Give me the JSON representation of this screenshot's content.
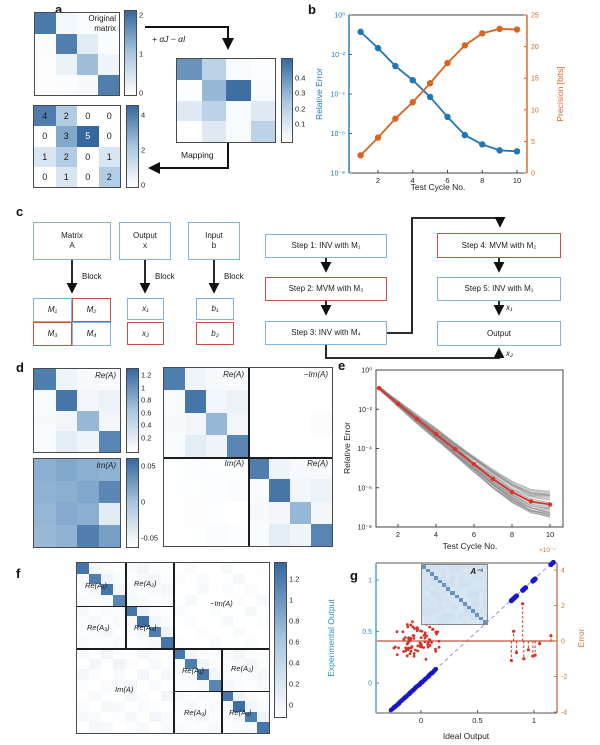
{
  "colors": {
    "heat_low": "#ffffff",
    "heat_mid": "#a8c6e0",
    "heat_high": "#34689f",
    "blue_series": "#1f77b4",
    "orange_series": "#d9641f",
    "red_series": "#d93327",
    "gray_ensemble": "#8a8a8a",
    "scatter_blue": "#1717cf",
    "scatter_red": "#d53326",
    "diag_line": "#9595ea",
    "zero_line": "#c8523a",
    "flow_blue_border": "#7fb5da",
    "flow_red_border": "#c94f45"
  },
  "panel_a": {
    "label": "a",
    "original_title": "Original\nmatrix",
    "transform_label": "+ αJ   − αI",
    "mapping_label": "Mapping",
    "original_matrix": [
      [
        1.9,
        0.15,
        0.05,
        0.03
      ],
      [
        0.05,
        1.85,
        0.35,
        0.05
      ],
      [
        0.03,
        0.25,
        1.15,
        0.2
      ],
      [
        0.03,
        0.05,
        0.1,
        1.85
      ]
    ],
    "original_scale": {
      "vmin": 0,
      "vmax": 2.1,
      "ticks": [
        {
          "v": 2,
          "label": "2"
        },
        {
          "v": 1,
          "label": "1"
        },
        {
          "v": 0,
          "label": "0"
        }
      ]
    },
    "conductance_matrix": [
      [
        0.4,
        0.2,
        0.02,
        0.01
      ],
      [
        0.01,
        0.3,
        0.5,
        0.02
      ],
      [
        0.1,
        0.2,
        0.02,
        0.1
      ],
      [
        0.0,
        0.1,
        0.02,
        0.2
      ]
    ],
    "conductance_scale": {
      "vmin": 0,
      "vmax": 0.52,
      "ticks": [
        {
          "v": 0.4,
          "label": "0.4"
        },
        {
          "v": 0.3,
          "label": "0.3"
        },
        {
          "v": 0.2,
          "label": "0.2"
        },
        {
          "v": 0.1,
          "label": "0.1"
        }
      ]
    },
    "mapped_matrix": [
      [
        4,
        2,
        0,
        0
      ],
      [
        0,
        3,
        5,
        0
      ],
      [
        1,
        2,
        0,
        1
      ],
      [
        0,
        1,
        0,
        2
      ]
    ],
    "mapped_scale": {
      "vmin": 0,
      "vmax": 4.5,
      "ticks": [
        {
          "v": 4,
          "label": "4"
        },
        {
          "v": 2,
          "label": "2"
        },
        {
          "v": 0,
          "label": "0"
        }
      ]
    }
  },
  "panel_b": {
    "label": "b",
    "x_label": "Test Cycle No.",
    "y_left_label": "Relative Error",
    "y_right_label": "Precision [bits]",
    "x_ticks": [
      2,
      4,
      6,
      8,
      10
    ],
    "y_left_ticks": [
      {
        "exp": 0,
        "label": "10⁰"
      },
      {
        "exp": -2,
        "label": "10⁻²"
      },
      {
        "exp": -4,
        "label": "10⁻⁴"
      },
      {
        "exp": -6,
        "label": "10⁻⁶"
      },
      {
        "exp": -8,
        "label": "10⁻⁸"
      }
    ],
    "y_right_ticks": [
      0,
      5,
      10,
      15,
      20,
      25
    ],
    "cycles": [
      1,
      2,
      3,
      4,
      5,
      6,
      7,
      8,
      9,
      10
    ],
    "relative_error": [
      0.14,
      0.021,
      0.0026,
      0.0005,
      7.1e-05,
      6.9e-06,
      8.3e-07,
      2.8e-07,
      1.4e-07,
      1.25e-07
    ],
    "precision_bits": [
      2.8,
      5.6,
      8.6,
      11.2,
      14.2,
      17.4,
      20.2,
      22.1,
      22.8,
      22.7
    ]
  },
  "panel_c": {
    "label": "c",
    "boxes": {
      "matrix_a": "Matrix\nA",
      "output": "Output\nx",
      "input": "Input\nb",
      "m1": "M₁",
      "m2": "M₂",
      "m3": "M₃",
      "m4": "M₄",
      "x1": "x₁",
      "x2": "x₂",
      "b1": "b₁",
      "b2": "b₂",
      "step1": "Step 1: INV with M₁",
      "step2": "Step 2: MVM with M₃",
      "step3": "Step 3: INV with M₄",
      "step4": "Step 4: MVM with M₂",
      "step5": "Step 5: INV with M₁",
      "output_box": "Output"
    },
    "block_label": "Block",
    "x1_flow": "x₁",
    "x2_flow": "x₂"
  },
  "panel_d": {
    "label": "d",
    "re_label": "Re(A)",
    "im_label": "Im(A)",
    "neg_im_label": "−Im(A)",
    "re_matrix": [
      [
        1.15,
        0.12,
        0.06,
        0.05
      ],
      [
        0.05,
        1.2,
        0.1,
        0.15
      ],
      [
        0.06,
        0.1,
        0.75,
        0.1
      ],
      [
        0.05,
        0.2,
        0.12,
        1.1
      ]
    ],
    "re_scale": {
      "vmin": 0,
      "vmax": 1.3,
      "ticks": [
        {
          "v": 1.2,
          "label": "1.2"
        },
        {
          "v": 1,
          "label": "1"
        },
        {
          "v": 0.8,
          "label": "0.8"
        },
        {
          "v": 0.6,
          "label": "0.6"
        },
        {
          "v": 0.4,
          "label": "0.4"
        },
        {
          "v": 0.2,
          "label": "0.2"
        }
      ]
    },
    "im_matrix": [
      [
        0.015,
        0.02,
        0.015,
        0.012
      ],
      [
        0.012,
        0.015,
        0.02,
        0.04
      ],
      [
        0.01,
        0.018,
        0.015,
        -0.04
      ],
      [
        0.008,
        0.012,
        0.045,
        0.025
      ]
    ],
    "im_scale": {
      "vmin": -0.06,
      "vmax": 0.06,
      "ticks": [
        {
          "v": 0.05,
          "label": "0.05"
        },
        {
          "v": 0,
          "label": "0"
        },
        {
          "v": -0.05,
          "label": "-0.05"
        }
      ]
    }
  },
  "panel_e": {
    "label": "e",
    "x_label": "Test Cycle No.",
    "y_label": "Relative Error",
    "x_ticks": [
      2,
      4,
      6,
      8,
      10
    ],
    "y_ticks": [
      {
        "exp": 0,
        "label": "10⁰"
      },
      {
        "exp": -2,
        "label": "10⁻²"
      },
      {
        "exp": -4,
        "label": "10⁻⁴"
      },
      {
        "exp": -6,
        "label": "10⁻⁶"
      },
      {
        "exp": -8,
        "label": "10⁻⁸"
      }
    ],
    "cycles": [
      1,
      2,
      3,
      4,
      5,
      6,
      7,
      8,
      9,
      10
    ],
    "mean_error": [
      0.12,
      0.019,
      0.0032,
      0.00054,
      9.3e-05,
      1.6e-05,
      2.8e-06,
      6e-07,
      2e-07,
      1.4e-07
    ],
    "ensemble": {
      "count": 38,
      "spread_decades": 0.55
    }
  },
  "panel_f": {
    "label": "f",
    "labels": [
      "Re(A₁)",
      "Re(A₂)",
      "Re(A₃)",
      "Re(A₄)",
      "−Im(A)",
      "Im(A)",
      "Re(A₁)",
      "Re(A₂)",
      "Re(A₃)",
      "Re(A₄)"
    ],
    "scale": {
      "vmin": -0.1,
      "vmax": 1.35,
      "ticks": [
        {
          "v": 1.2,
          "label": "1.2"
        },
        {
          "v": 1,
          "label": "1"
        },
        {
          "v": 0.8,
          "label": "0.8"
        },
        {
          "v": 0.6,
          "label": "0.6"
        },
        {
          "v": 0.4,
          "label": "0.4"
        },
        {
          "v": 0.2,
          "label": "0.2"
        },
        {
          "v": 0,
          "label": "0"
        }
      ]
    },
    "re_matrix": [
      [
        1.2,
        0.1,
        0.04,
        0.02,
        0.05,
        0.1,
        0.03,
        0.02
      ],
      [
        0.05,
        1.15,
        0.12,
        0.04,
        0.02,
        0.06,
        0.1,
        0.03
      ],
      [
        0.02,
        0.08,
        1.2,
        0.1,
        0.04,
        0.02,
        0.05,
        0.08
      ],
      [
        0.04,
        0.03,
        0.06,
        1.1,
        0.08,
        0.04,
        0.02,
        0.05
      ],
      [
        0.06,
        0.02,
        0.05,
        0.03,
        1.2,
        0.12,
        0.04,
        0.02
      ],
      [
        0.03,
        0.07,
        0.02,
        0.05,
        0.06,
        1.25,
        0.1,
        0.04
      ],
      [
        0.02,
        0.04,
        0.08,
        0.02,
        0.03,
        0.08,
        1.15,
        0.12
      ],
      [
        0.05,
        0.02,
        0.03,
        0.06,
        0.02,
        0.04,
        0.06,
        1.2
      ]
    ],
    "im_matrix": [
      [
        0.06,
        -0.04,
        0.1,
        0.02,
        -0.06,
        0.08,
        0.03,
        -0.02
      ],
      [
        -0.03,
        0.09,
        -0.05,
        0.12,
        0.04,
        -0.08,
        0.06,
        0.02
      ],
      [
        0.08,
        0.02,
        -0.06,
        0.05,
        -0.03,
        0.1,
        -0.04,
        0.07
      ],
      [
        0.02,
        -0.07,
        0.04,
        0.08,
        0.1,
        -0.02,
        0.05,
        -0.06
      ],
      [
        -0.05,
        0.06,
        0.02,
        -0.04,
        0.07,
        0.03,
        -0.08,
        0.1
      ],
      [
        0.04,
        -0.02,
        0.08,
        0.06,
        -0.06,
        0.05,
        0.02,
        -0.03
      ],
      [
        0.07,
        0.05,
        -0.03,
        0.02,
        0.08,
        -0.05,
        0.1,
        0.04
      ],
      [
        -0.02,
        0.08,
        0.06,
        -0.05,
        0.03,
        0.07,
        -0.04,
        0.06
      ]
    ]
  },
  "panel_g": {
    "label": "g",
    "x_label": "Ideal Output",
    "y_left_label": "Experimental Output",
    "y_right_label": "Error",
    "right_multiplier": "×10⁻⁷",
    "inset_label": "A⁻¹",
    "x_ticks": [
      {
        "v": 0,
        "label": "0"
      },
      {
        "v": 0.5,
        "label": "0.5"
      },
      {
        "v": 1,
        "label": "1"
      }
    ],
    "y_left_ticks": [
      {
        "v": 1,
        "label": "1"
      },
      {
        "v": 0.5,
        "label": "0.5"
      },
      {
        "v": 0,
        "label": "0"
      }
    ],
    "y_right_ticks": [
      {
        "v": 4,
        "label": "4"
      },
      {
        "v": 2,
        "label": "2"
      },
      {
        "v": 0,
        "label": "0"
      },
      {
        "v": -2,
        "label": "-2"
      },
      {
        "v": -4,
        "label": "-4"
      }
    ],
    "blue_cluster": {
      "x_min": -0.26,
      "x_max": 0.13,
      "count": 48
    },
    "blue_points": [
      0.8,
      0.815,
      0.83,
      0.845,
      0.9,
      0.91,
      0.925,
      0.99,
      1.0,
      1.01,
      1.15,
      1.17
    ],
    "red_cluster": {
      "count": 85,
      "x_mean": -0.03,
      "x_sd": 0.09,
      "error_sd": 0.45
    },
    "red_stems": [
      {
        "x": 0.8,
        "e": -1.1
      },
      {
        "x": 0.82,
        "e": 0.55
      },
      {
        "x": 0.845,
        "e": -0.65
      },
      {
        "x": 0.9,
        "e": 2.1
      },
      {
        "x": 0.91,
        "e": -1.0
      },
      {
        "x": 0.95,
        "e": -0.5
      },
      {
        "x": 0.99,
        "e": -0.85
      },
      {
        "x": 1.01,
        "e": -0.8
      },
      {
        "x": 1.05,
        "e": -0.15
      },
      {
        "x": 1.15,
        "e": 0.3
      }
    ]
  }
}
